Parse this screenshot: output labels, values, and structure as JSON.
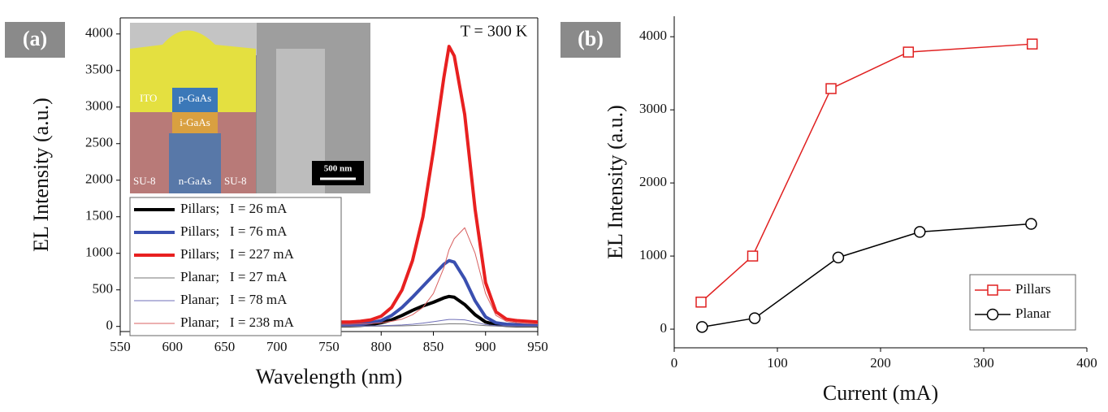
{
  "chart_data": [
    {
      "type": "line",
      "panel_label": "(a)",
      "annotation": "T = 300 K",
      "x_label": "Wavelength (nm)",
      "y_label": "EL Intensity (a.u.)",
      "xlim": [
        550,
        950
      ],
      "xticks": [
        550,
        600,
        650,
        700,
        750,
        800,
        850,
        900,
        950
      ],
      "ylim": [
        -70,
        4220
      ],
      "yticks": [
        0,
        500,
        1000,
        1500,
        2000,
        2500,
        3000,
        3500,
        4000
      ],
      "frame": true,
      "legend": "lower left",
      "inset": {
        "labels": [
          "ITO",
          "p-GaAs",
          "i-GaAs",
          "SU-8",
          "n-GaAs",
          "SU-8"
        ],
        "scale_bar": "500 nm"
      },
      "x": [
        760,
        770,
        780,
        790,
        800,
        810,
        820,
        830,
        840,
        850,
        860,
        865,
        870,
        880,
        890,
        900,
        910,
        920,
        930,
        940,
        950
      ],
      "series": [
        {
          "name": "Pillars;   I = 26 mA",
          "color": "#000000",
          "line_width": 4,
          "values": [
            10,
            10,
            15,
            25,
            50,
            90,
            150,
            220,
            280,
            330,
            390,
            410,
            400,
            300,
            160,
            60,
            25,
            15,
            10,
            10,
            10
          ]
        },
        {
          "name": "Pillars;   I = 76 mA",
          "color": "#3a4fb0",
          "line_width": 4,
          "values": [
            20,
            20,
            30,
            50,
            80,
            150,
            260,
            400,
            550,
            700,
            850,
            900,
            880,
            650,
            350,
            130,
            50,
            30,
            25,
            20,
            20
          ]
        },
        {
          "name": "Pillars;   I = 227 mA",
          "color": "#e82020",
          "line_width": 4,
          "values": [
            60,
            60,
            70,
            90,
            140,
            260,
            500,
            900,
            1500,
            2400,
            3400,
            3830,
            3700,
            2900,
            1600,
            600,
            200,
            100,
            80,
            70,
            60
          ]
        },
        {
          "name": "Planar;   I = 27 mA",
          "color": "#777777",
          "line_width": 1,
          "values": [
            2,
            2,
            2,
            3,
            4,
            6,
            8,
            12,
            18,
            25,
            32,
            35,
            36,
            34,
            22,
            10,
            5,
            3,
            2,
            2,
            2
          ]
        },
        {
          "name": "Planar;   I = 78 mA",
          "color": "#6f6fb8",
          "line_width": 1,
          "values": [
            5,
            5,
            5,
            8,
            10,
            15,
            20,
            30,
            45,
            65,
            85,
            95,
            95,
            90,
            60,
            25,
            10,
            8,
            5,
            5,
            5
          ]
        },
        {
          "name": "Planar;   I = 238 mA",
          "color": "#d86060",
          "line_width": 1,
          "values": [
            30,
            30,
            35,
            40,
            50,
            70,
            100,
            160,
            260,
            450,
            800,
            1050,
            1200,
            1350,
            1000,
            450,
            150,
            70,
            50,
            40,
            35
          ]
        }
      ]
    },
    {
      "type": "line",
      "panel_label": "(b)",
      "x_label": "Current (mA)",
      "y_label": "EL Intensity (a.u.)",
      "xlim": [
        0,
        400
      ],
      "xticks": [
        0,
        100,
        200,
        300,
        400
      ],
      "ylim": [
        -255,
        4280
      ],
      "yticks": [
        0,
        1000,
        2000,
        3000,
        4000
      ],
      "frame": false,
      "legend": "lower right",
      "series": [
        {
          "name": "Pillars",
          "color": "#e02020",
          "line_width": 1.5,
          "marker": "square",
          "x": [
            26,
            76,
            152,
            227,
            347
          ],
          "values": [
            370,
            1000,
            3290,
            3790,
            3900
          ]
        },
        {
          "name": "Planar",
          "color": "#000000",
          "line_width": 1.5,
          "marker": "circle",
          "x": [
            27,
            78,
            159,
            238,
            346
          ],
          "values": [
            30,
            150,
            980,
            1330,
            1440
          ]
        }
      ]
    }
  ]
}
